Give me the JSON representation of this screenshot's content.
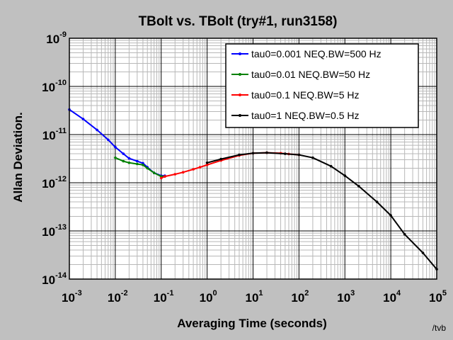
{
  "chart_data": {
    "type": "line",
    "title": "TBolt vs. TBolt (try#1, run3158)",
    "xlabel": "Averaging Time (seconds)",
    "ylabel": "Allan Deviation.",
    "x_scale": "log",
    "y_scale": "log",
    "xlim": [
      0.001,
      100000
    ],
    "ylim": [
      1e-14,
      1e-09
    ],
    "x_ticks": [
      {
        "base": "10",
        "exp": "-3",
        "value": 0.001
      },
      {
        "base": "10",
        "exp": "-2",
        "value": 0.01
      },
      {
        "base": "10",
        "exp": "-1",
        "value": 0.1
      },
      {
        "base": "10",
        "exp": "0",
        "value": 1
      },
      {
        "base": "10",
        "exp": "1",
        "value": 10
      },
      {
        "base": "10",
        "exp": "2",
        "value": 100
      },
      {
        "base": "10",
        "exp": "3",
        "value": 1000
      },
      {
        "base": "10",
        "exp": "4",
        "value": 10000
      },
      {
        "base": "10",
        "exp": "5",
        "value": 100000
      }
    ],
    "y_ticks": [
      {
        "base": "10",
        "exp": "-14",
        "value": 1e-14
      },
      {
        "base": "10",
        "exp": "-13",
        "value": 1e-13
      },
      {
        "base": "10",
        "exp": "-12",
        "value": 1e-12
      },
      {
        "base": "10",
        "exp": "-11",
        "value": 1e-11
      },
      {
        "base": "10",
        "exp": "-10",
        "value": 1e-10
      },
      {
        "base": "10",
        "exp": "-9",
        "value": 1e-09
      }
    ],
    "grid": true,
    "legend_position": "top-right",
    "series": [
      {
        "name": "tau0=0.001 NEQ.BW=500 Hz",
        "color": "#0000ff",
        "x": [
          0.001,
          0.002,
          0.004,
          0.007,
          0.01,
          0.015,
          0.02,
          0.03,
          0.04,
          0.05,
          0.07,
          0.1,
          0.12
        ],
        "y": [
          3.3e-11,
          2.1e-11,
          1.25e-11,
          7.8e-12,
          5.5e-12,
          4e-12,
          3.2e-12,
          2.8e-12,
          2.55e-12,
          2.1e-12,
          1.6e-12,
          1.4e-12,
          1.4e-12
        ]
      },
      {
        "name": "tau0=0.01 NEQ.BW=50 Hz",
        "color": "#008000",
        "x": [
          0.01,
          0.015,
          0.02,
          0.03,
          0.04,
          0.05,
          0.07,
          0.1,
          0.12
        ],
        "y": [
          3.3e-12,
          2.8e-12,
          2.6e-12,
          2.45e-12,
          2.35e-12,
          2e-12,
          1.6e-12,
          1.35e-12,
          1.35e-12
        ]
      },
      {
        "name": "tau0=0.1 NEQ.BW=5 Hz",
        "color": "#ff0000",
        "x": [
          0.1,
          0.12,
          0.2,
          0.3,
          0.5,
          0.7,
          1,
          2,
          5,
          10,
          20,
          40,
          60,
          100
        ],
        "y": [
          1.25e-12,
          1.35e-12,
          1.5e-12,
          1.65e-12,
          1.9e-12,
          2.1e-12,
          2.35e-12,
          2.9e-12,
          3.7e-12,
          4.1e-12,
          4.2e-12,
          4.1e-12,
          3.95e-12,
          3.8e-12
        ]
      },
      {
        "name": "tau0=1 NEQ.BW=0.5 Hz",
        "color": "#000000",
        "x": [
          1,
          2,
          5,
          10,
          20,
          50,
          100,
          200,
          500,
          1000,
          2000,
          5000,
          10000,
          20000,
          50000,
          100000
        ],
        "y": [
          2.6e-12,
          3.1e-12,
          3.8e-12,
          4.1e-12,
          4.2e-12,
          4e-12,
          3.8e-12,
          3.3e-12,
          2.2e-12,
          1.4e-12,
          8.5e-13,
          4e-13,
          2.1e-13,
          8.5e-14,
          3.5e-14,
          1.6e-14
        ]
      }
    ]
  },
  "credit": "/tvb"
}
